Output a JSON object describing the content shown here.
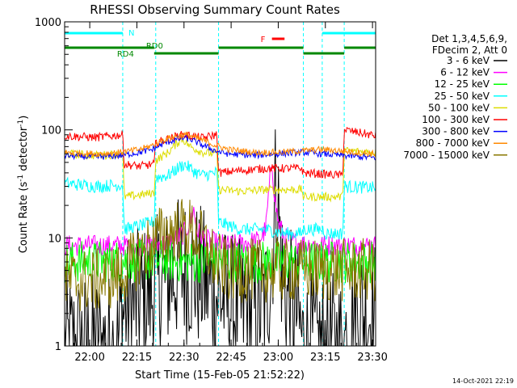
{
  "chart_data": {
    "type": "line",
    "title": "RHESSI Observing Summary Count Rates",
    "xlabel": "Start Time (15-Feb-05 21:52:22)",
    "ylabel_main": "Count Rate (s",
    "ylabel_sup1": "-1",
    "ylabel_mid": " detector",
    "ylabel_sup2": "-1",
    "ylabel_end": ")",
    "y_scale": "log",
    "ylim": [
      1,
      1000
    ],
    "xlim_minutes_after_2152": [
      0,
      99
    ],
    "x_ticks": [
      {
        "label": "22:00",
        "m": 8
      },
      {
        "label": "22:15",
        "m": 23
      },
      {
        "label": "22:30",
        "m": 38
      },
      {
        "label": "22:45",
        "m": 53
      },
      {
        "label": "23:00",
        "m": 68
      },
      {
        "label": "23:15",
        "m": 83
      },
      {
        "label": "23:30",
        "m": 98
      }
    ],
    "y_ticks": [
      {
        "label": "1",
        "v": 1
      },
      {
        "label": "10",
        "v": 10
      },
      {
        "label": "100",
        "v": 100
      },
      {
        "label": "1000",
        "v": 1000
      }
    ],
    "legend": {
      "header": [
        "Det 1,3,4,5,6,9,",
        "FDecim 2, Att 0"
      ],
      "placement": "right",
      "entries": [
        {
          "label": "3 - 6 keV",
          "color": "#000000"
        },
        {
          "label": "6 - 12 keV",
          "color": "#ff00ff"
        },
        {
          "label": "12 - 25 keV",
          "color": "#00ff00"
        },
        {
          "label": "25 - 50 keV",
          "color": "#00ffff"
        },
        {
          "label": "50 - 100 keV",
          "color": "#dddd00"
        },
        {
          "label": "100 - 300 keV",
          "color": "#ff0000"
        },
        {
          "label": "300 - 800 keV",
          "color": "#0000ff"
        },
        {
          "label": "800 - 7000 keV",
          "color": "#ff8800"
        },
        {
          "label": "7000 - 15000 keV",
          "color": "#887700"
        }
      ]
    },
    "flags": {
      "N_label": "N",
      "F_label": "F",
      "RD0_label": "RD0",
      "RD4_label": "RD4",
      "night_color": "#00ffff",
      "flare_color": "#ff0000",
      "decim_color": "#008800",
      "N_bars": [
        [
          0,
          18.5
        ],
        [
          82,
          99
        ]
      ],
      "F_bars": [
        [
          66,
          70
        ]
      ],
      "RD0_bars": [
        [
          0,
          28.5
        ],
        [
          49,
          76
        ],
        [
          89,
          99
        ]
      ],
      "RD4_bars": [
        [
          28.5,
          49
        ],
        [
          76,
          89
        ]
      ]
    },
    "night_intervals": [
      [
        18.5,
        29
      ],
      [
        49,
        76
      ],
      [
        82,
        89
      ]
    ],
    "series": [
      {
        "name": "3 - 6 keV",
        "color": "#000000",
        "noise": 0.7,
        "points": [
          [
            0,
            1.0
          ],
          [
            17,
            1.0
          ],
          [
            18,
            2.0
          ],
          [
            23,
            2.5
          ],
          [
            28,
            3.0
          ],
          [
            32,
            4.0
          ],
          [
            36,
            5.0
          ],
          [
            40,
            5.0
          ],
          [
            44,
            4.0
          ],
          [
            48,
            3.0
          ],
          [
            52,
            2.5
          ],
          [
            56,
            2.0
          ],
          [
            60,
            2.0
          ],
          [
            64,
            2.5
          ],
          [
            66,
            6.0
          ],
          [
            67,
            28
          ],
          [
            68,
            20
          ],
          [
            69,
            6.0
          ],
          [
            70,
            3.0
          ],
          [
            74,
            2.0
          ],
          [
            76,
            1.0
          ],
          [
            89,
            1.0
          ],
          [
            91,
            2.0
          ],
          [
            99,
            2.0
          ]
        ]
      },
      {
        "name": "6 - 12 keV",
        "color": "#ff00ff",
        "noise": 0.1,
        "points": [
          [
            0,
            8.5
          ],
          [
            10,
            8.5
          ],
          [
            20,
            8.5
          ],
          [
            28,
            8.6
          ],
          [
            33,
            9.0
          ],
          [
            36,
            10
          ],
          [
            38,
            11
          ],
          [
            40,
            14
          ],
          [
            41,
            19
          ],
          [
            42,
            12
          ],
          [
            44,
            10
          ],
          [
            48,
            9.0
          ],
          [
            52,
            8.5
          ],
          [
            58,
            9.0
          ],
          [
            62,
            9.5
          ],
          [
            64,
            12
          ],
          [
            65,
            26
          ],
          [
            66,
            50
          ],
          [
            67,
            22
          ],
          [
            68,
            14
          ],
          [
            70,
            10
          ],
          [
            74,
            9.0
          ],
          [
            80,
            8.5
          ],
          [
            90,
            8.5
          ],
          [
            99,
            8.5
          ]
        ]
      },
      {
        "name": "12 - 25 keV",
        "color": "#00ff00",
        "noise": 0.2,
        "points": [
          [
            0,
            6.0
          ],
          [
            10,
            6.0
          ],
          [
            20,
            6.2
          ],
          [
            30,
            6.2
          ],
          [
            40,
            6.0
          ],
          [
            50,
            6.0
          ],
          [
            60,
            6.0
          ],
          [
            70,
            6.0
          ],
          [
            80,
            6.0
          ],
          [
            90,
            6.0
          ],
          [
            99,
            6.0
          ]
        ]
      },
      {
        "name": "25 - 50 keV",
        "color": "#00ffff",
        "noise": 0.06,
        "points": [
          [
            0,
            32
          ],
          [
            10,
            30
          ],
          [
            18,
            31
          ],
          [
            18.5,
            31
          ],
          [
            19,
            12
          ],
          [
            24,
            13
          ],
          [
            28,
            14
          ],
          [
            28.5,
            14
          ],
          [
            29,
            36
          ],
          [
            33,
            38
          ],
          [
            36,
            44
          ],
          [
            38,
            48
          ],
          [
            40,
            44
          ],
          [
            42,
            40
          ],
          [
            44,
            38
          ],
          [
            48,
            40
          ],
          [
            48.5,
            40
          ],
          [
            49,
            14
          ],
          [
            56,
            12
          ],
          [
            64,
            12
          ],
          [
            70,
            11
          ],
          [
            75,
            11
          ],
          [
            75.5,
            11
          ],
          [
            76,
            12
          ],
          [
            82,
            12
          ],
          [
            82.5,
            12
          ],
          [
            83,
            11
          ],
          [
            88,
            11
          ],
          [
            88.5,
            11
          ],
          [
            89,
            30
          ],
          [
            99,
            29
          ]
        ]
      },
      {
        "name": "50 - 100 keV",
        "color": "#dddd00",
        "noise": 0.04,
        "points": [
          [
            0,
            60
          ],
          [
            10,
            58
          ],
          [
            18,
            60
          ],
          [
            18.5,
            60
          ],
          [
            19,
            24
          ],
          [
            24,
            25
          ],
          [
            28,
            26
          ],
          [
            28.5,
            26
          ],
          [
            29,
            52
          ],
          [
            33,
            62
          ],
          [
            37,
            82
          ],
          [
            38,
            80
          ],
          [
            40,
            70
          ],
          [
            44,
            62
          ],
          [
            48,
            60
          ],
          [
            48.5,
            60
          ],
          [
            49,
            28
          ],
          [
            56,
            27
          ],
          [
            64,
            28
          ],
          [
            70,
            28
          ],
          [
            75,
            28
          ],
          [
            75.5,
            28
          ],
          [
            76,
            24
          ],
          [
            88,
            24
          ],
          [
            88.5,
            24
          ],
          [
            89,
            64
          ],
          [
            99,
            62
          ]
        ]
      },
      {
        "name": "100 - 300 keV",
        "color": "#ff0000",
        "noise": 0.04,
        "points": [
          [
            0,
            88
          ],
          [
            10,
            85
          ],
          [
            18,
            90
          ],
          [
            18.5,
            90
          ],
          [
            19,
            48
          ],
          [
            24,
            46
          ],
          [
            28,
            48
          ],
          [
            28.5,
            48
          ],
          [
            29,
            76
          ],
          [
            33,
            82
          ],
          [
            36,
            88
          ],
          [
            38,
            90
          ],
          [
            40,
            88
          ],
          [
            44,
            84
          ],
          [
            48,
            90
          ],
          [
            48.5,
            90
          ],
          [
            49,
            40
          ],
          [
            56,
            42
          ],
          [
            64,
            44
          ],
          [
            70,
            44
          ],
          [
            75,
            44
          ],
          [
            75.5,
            44
          ],
          [
            76,
            40
          ],
          [
            88,
            38
          ],
          [
            88.5,
            38
          ],
          [
            89,
            100
          ],
          [
            99,
            88
          ]
        ]
      },
      {
        "name": "300 - 800 keV",
        "color": "#0000ff",
        "noise": 0.03,
        "points": [
          [
            0,
            58
          ],
          [
            10,
            56
          ],
          [
            18,
            58
          ],
          [
            24,
            62
          ],
          [
            28,
            66
          ],
          [
            32,
            76
          ],
          [
            36,
            82
          ],
          [
            38,
            84
          ],
          [
            40,
            82
          ],
          [
            44,
            72
          ],
          [
            48,
            64
          ],
          [
            52,
            60
          ],
          [
            60,
            58
          ],
          [
            68,
            60
          ],
          [
            76,
            62
          ],
          [
            82,
            60
          ],
          [
            88,
            58
          ],
          [
            92,
            57
          ],
          [
            99,
            55
          ]
        ]
      },
      {
        "name": "800 - 7000 keV",
        "color": "#ff8800",
        "noise": 0.03,
        "points": [
          [
            0,
            62
          ],
          [
            10,
            60
          ],
          [
            18,
            62
          ],
          [
            24,
            66
          ],
          [
            28,
            72
          ],
          [
            32,
            82
          ],
          [
            36,
            88
          ],
          [
            38,
            90
          ],
          [
            40,
            88
          ],
          [
            44,
            80
          ],
          [
            48,
            72
          ],
          [
            52,
            66
          ],
          [
            60,
            62
          ],
          [
            68,
            62
          ],
          [
            76,
            64
          ],
          [
            82,
            66
          ],
          [
            88,
            64
          ],
          [
            92,
            62
          ],
          [
            99,
            60
          ]
        ]
      },
      {
        "name": "7000 - 15000 keV",
        "color": "#887700",
        "noise": 0.3,
        "points": [
          [
            0,
            4.0
          ],
          [
            10,
            4.0
          ],
          [
            18,
            4.5
          ],
          [
            24,
            7.0
          ],
          [
            28,
            9.0
          ],
          [
            32,
            11
          ],
          [
            36,
            12
          ],
          [
            38,
            12
          ],
          [
            40,
            12
          ],
          [
            44,
            9.0
          ],
          [
            48,
            6.0
          ],
          [
            52,
            5.0
          ],
          [
            60,
            5.0
          ],
          [
            68,
            5.0
          ],
          [
            76,
            5.0
          ],
          [
            82,
            5.0
          ],
          [
            88,
            5.0
          ],
          [
            92,
            5.0
          ],
          [
            99,
            5.0
          ]
        ]
      }
    ],
    "grid": false
  },
  "stamp": "14-Oct-2021 22:19"
}
